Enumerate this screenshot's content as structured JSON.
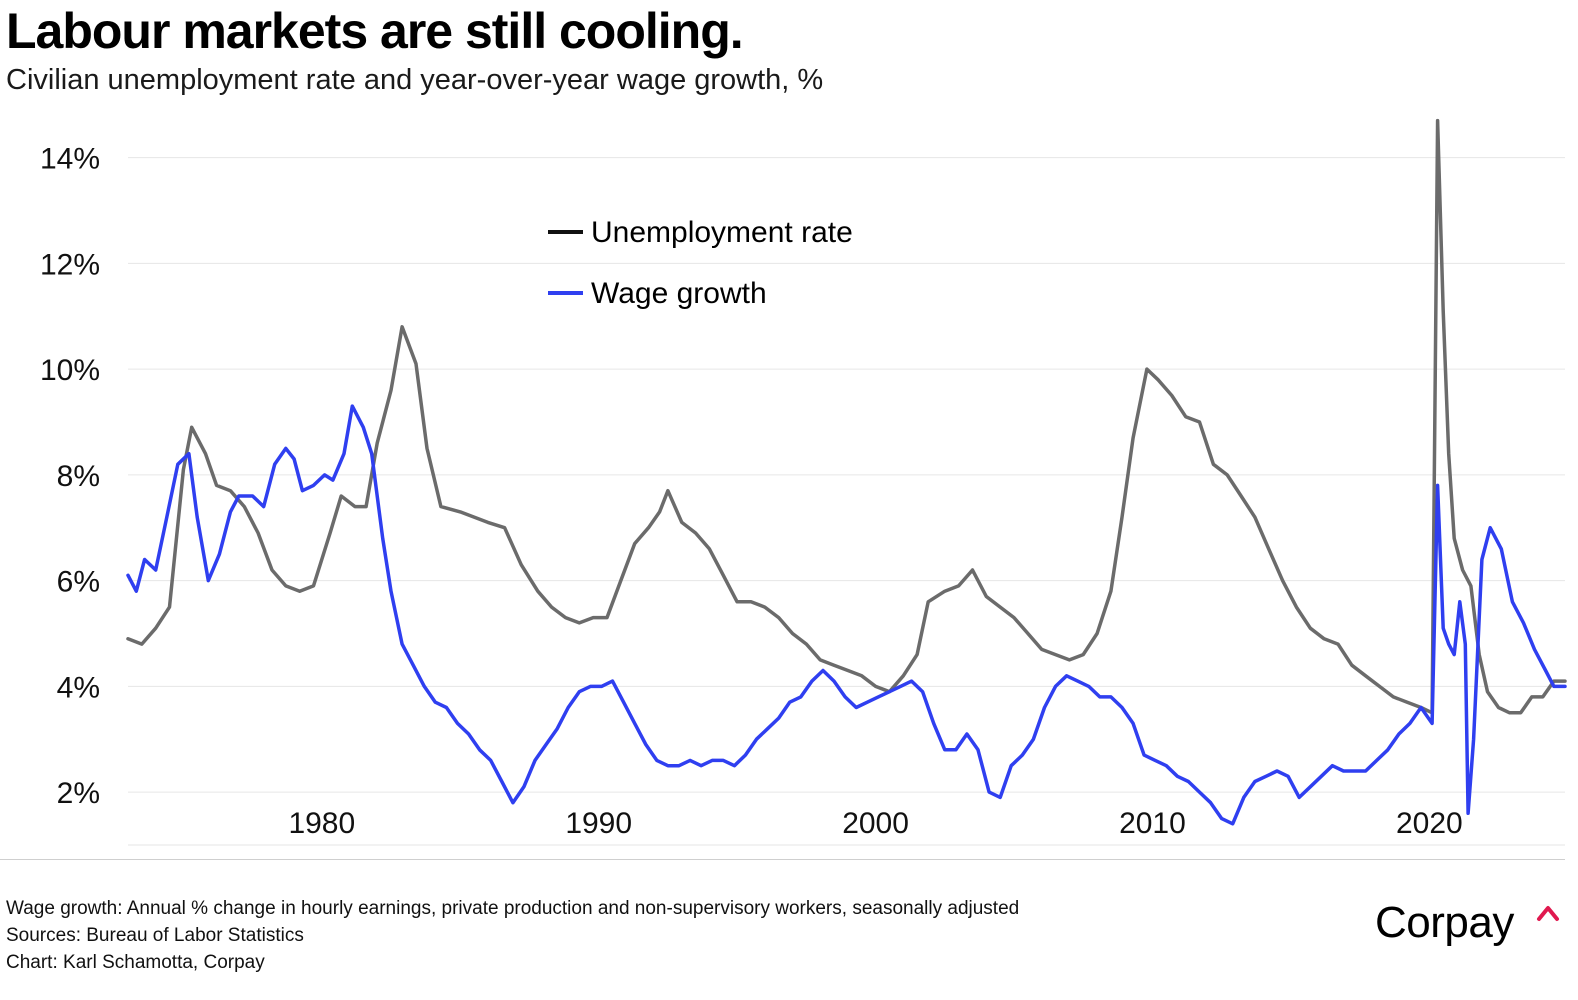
{
  "header": {
    "title": "Labour markets are still cooling.",
    "subtitle": "Civilian unemployment rate and year-over-year wage growth, %"
  },
  "footer": {
    "note": "Wage growth: Annual % change in hourly earnings, private production and non-supervisory workers, seasonally adjusted",
    "sources": "Sources: Bureau of Labor Statistics",
    "credit": "Chart: Karl Schamotta, Corpay"
  },
  "brand": {
    "logo_text": "Corpay",
    "accent_color": "#e0194f"
  },
  "chart_data": {
    "type": "line",
    "title": "Labour markets are still cooling.",
    "subtitle": "Civilian unemployment rate and year-over-year wage growth, %",
    "xlabel": "",
    "ylabel": "",
    "xlim": [
      1973.0,
      2024.9
    ],
    "ylim": [
      1.0,
      14.9
    ],
    "x_ticks": [
      1980,
      1990,
      2000,
      2010,
      2020
    ],
    "x_tick_labels": [
      "1980",
      "1990",
      "2000",
      "2010",
      "2020"
    ],
    "y_ticks": [
      2,
      4,
      6,
      8,
      10,
      12,
      14
    ],
    "y_tick_labels": [
      "2%",
      "4%",
      "6%",
      "8%",
      "10%",
      "12%",
      "14%"
    ],
    "grid": "horizontal",
    "legend": "top-center",
    "series": [
      {
        "name": "Unemployment rate",
        "color": "#6b6b6b",
        "points": [
          [
            1973.0,
            4.9
          ],
          [
            1973.5,
            4.8
          ],
          [
            1974.0,
            5.1
          ],
          [
            1974.5,
            5.5
          ],
          [
            1975.0,
            8.1
          ],
          [
            1975.3,
            8.9
          ],
          [
            1975.8,
            8.4
          ],
          [
            1976.2,
            7.8
          ],
          [
            1976.7,
            7.7
          ],
          [
            1977.2,
            7.4
          ],
          [
            1977.7,
            6.9
          ],
          [
            1978.2,
            6.2
          ],
          [
            1978.7,
            5.9
          ],
          [
            1979.2,
            5.8
          ],
          [
            1979.7,
            5.9
          ],
          [
            1980.3,
            6.9
          ],
          [
            1980.7,
            7.6
          ],
          [
            1981.2,
            7.4
          ],
          [
            1981.6,
            7.4
          ],
          [
            1982.0,
            8.6
          ],
          [
            1982.5,
            9.6
          ],
          [
            1982.9,
            10.8
          ],
          [
            1983.4,
            10.1
          ],
          [
            1983.8,
            8.5
          ],
          [
            1984.3,
            7.4
          ],
          [
            1985.0,
            7.3
          ],
          [
            1986.0,
            7.1
          ],
          [
            1986.6,
            7.0
          ],
          [
            1987.2,
            6.3
          ],
          [
            1987.8,
            5.8
          ],
          [
            1988.3,
            5.5
          ],
          [
            1988.8,
            5.3
          ],
          [
            1989.3,
            5.2
          ],
          [
            1989.8,
            5.3
          ],
          [
            1990.3,
            5.3
          ],
          [
            1990.8,
            6.0
          ],
          [
            1991.3,
            6.7
          ],
          [
            1991.8,
            7.0
          ],
          [
            1992.2,
            7.3
          ],
          [
            1992.5,
            7.7
          ],
          [
            1993.0,
            7.1
          ],
          [
            1993.5,
            6.9
          ],
          [
            1994.0,
            6.6
          ],
          [
            1994.5,
            6.1
          ],
          [
            1995.0,
            5.6
          ],
          [
            1995.5,
            5.6
          ],
          [
            1996.0,
            5.5
          ],
          [
            1996.5,
            5.3
          ],
          [
            1997.0,
            5.0
          ],
          [
            1997.5,
            4.8
          ],
          [
            1998.0,
            4.5
          ],
          [
            1998.5,
            4.4
          ],
          [
            1999.0,
            4.3
          ],
          [
            1999.5,
            4.2
          ],
          [
            2000.0,
            4.0
          ],
          [
            2000.5,
            3.9
          ],
          [
            2001.0,
            4.2
          ],
          [
            2001.5,
            4.6
          ],
          [
            2001.9,
            5.6
          ],
          [
            2002.5,
            5.8
          ],
          [
            2003.0,
            5.9
          ],
          [
            2003.5,
            6.2
          ],
          [
            2004.0,
            5.7
          ],
          [
            2004.5,
            5.5
          ],
          [
            2005.0,
            5.3
          ],
          [
            2005.5,
            5.0
          ],
          [
            2006.0,
            4.7
          ],
          [
            2006.5,
            4.6
          ],
          [
            2007.0,
            4.5
          ],
          [
            2007.5,
            4.6
          ],
          [
            2008.0,
            5.0
          ],
          [
            2008.5,
            5.8
          ],
          [
            2008.9,
            7.2
          ],
          [
            2009.3,
            8.7
          ],
          [
            2009.8,
            10.0
          ],
          [
            2010.2,
            9.8
          ],
          [
            2010.7,
            9.5
          ],
          [
            2011.2,
            9.1
          ],
          [
            2011.7,
            9.0
          ],
          [
            2012.2,
            8.2
          ],
          [
            2012.7,
            8.0
          ],
          [
            2013.2,
            7.6
          ],
          [
            2013.7,
            7.2
          ],
          [
            2014.2,
            6.6
          ],
          [
            2014.7,
            6.0
          ],
          [
            2015.2,
            5.5
          ],
          [
            2015.7,
            5.1
          ],
          [
            2016.2,
            4.9
          ],
          [
            2016.7,
            4.8
          ],
          [
            2017.2,
            4.4
          ],
          [
            2017.7,
            4.2
          ],
          [
            2018.2,
            4.0
          ],
          [
            2018.7,
            3.8
          ],
          [
            2019.2,
            3.7
          ],
          [
            2019.7,
            3.6
          ],
          [
            2020.1,
            3.5
          ],
          [
            2020.3,
            14.7
          ],
          [
            2020.5,
            11.1
          ],
          [
            2020.7,
            8.4
          ],
          [
            2020.9,
            6.8
          ],
          [
            2021.2,
            6.2
          ],
          [
            2021.5,
            5.9
          ],
          [
            2021.8,
            4.6
          ],
          [
            2022.1,
            3.9
          ],
          [
            2022.5,
            3.6
          ],
          [
            2022.9,
            3.5
          ],
          [
            2023.3,
            3.5
          ],
          [
            2023.7,
            3.8
          ],
          [
            2024.1,
            3.8
          ],
          [
            2024.5,
            4.1
          ],
          [
            2024.9,
            4.1
          ]
        ]
      },
      {
        "name": "Wage growth",
        "color": "#2f3ff0",
        "points": [
          [
            1973.0,
            6.1
          ],
          [
            1973.3,
            5.8
          ],
          [
            1973.6,
            6.4
          ],
          [
            1974.0,
            6.2
          ],
          [
            1974.4,
            7.2
          ],
          [
            1974.8,
            8.2
          ],
          [
            1975.2,
            8.4
          ],
          [
            1975.5,
            7.2
          ],
          [
            1975.9,
            6.0
          ],
          [
            1976.3,
            6.5
          ],
          [
            1976.7,
            7.3
          ],
          [
            1977.0,
            7.6
          ],
          [
            1977.5,
            7.6
          ],
          [
            1977.9,
            7.4
          ],
          [
            1978.3,
            8.2
          ],
          [
            1978.7,
            8.5
          ],
          [
            1979.0,
            8.3
          ],
          [
            1979.3,
            7.7
          ],
          [
            1979.7,
            7.8
          ],
          [
            1980.1,
            8.0
          ],
          [
            1980.4,
            7.9
          ],
          [
            1980.8,
            8.4
          ],
          [
            1981.1,
            9.3
          ],
          [
            1981.5,
            8.9
          ],
          [
            1981.8,
            8.4
          ],
          [
            1982.2,
            6.8
          ],
          [
            1982.5,
            5.8
          ],
          [
            1982.9,
            4.8
          ],
          [
            1983.3,
            4.4
          ],
          [
            1983.7,
            4.0
          ],
          [
            1984.1,
            3.7
          ],
          [
            1984.5,
            3.6
          ],
          [
            1984.9,
            3.3
          ],
          [
            1985.3,
            3.1
          ],
          [
            1985.7,
            2.8
          ],
          [
            1986.1,
            2.6
          ],
          [
            1986.5,
            2.2
          ],
          [
            1986.9,
            1.8
          ],
          [
            1987.3,
            2.1
          ],
          [
            1987.7,
            2.6
          ],
          [
            1988.1,
            2.9
          ],
          [
            1988.5,
            3.2
          ],
          [
            1988.9,
            3.6
          ],
          [
            1989.3,
            3.9
          ],
          [
            1989.7,
            4.0
          ],
          [
            1990.1,
            4.0
          ],
          [
            1990.5,
            4.1
          ],
          [
            1990.9,
            3.7
          ],
          [
            1991.3,
            3.3
          ],
          [
            1991.7,
            2.9
          ],
          [
            1992.1,
            2.6
          ],
          [
            1992.5,
            2.5
          ],
          [
            1992.9,
            2.5
          ],
          [
            1993.3,
            2.6
          ],
          [
            1993.7,
            2.5
          ],
          [
            1994.1,
            2.6
          ],
          [
            1994.5,
            2.6
          ],
          [
            1994.9,
            2.5
          ],
          [
            1995.3,
            2.7
          ],
          [
            1995.7,
            3.0
          ],
          [
            1996.1,
            3.2
          ],
          [
            1996.5,
            3.4
          ],
          [
            1996.9,
            3.7
          ],
          [
            1997.3,
            3.8
          ],
          [
            1997.7,
            4.1
          ],
          [
            1998.1,
            4.3
          ],
          [
            1998.5,
            4.1
          ],
          [
            1998.9,
            3.8
          ],
          [
            1999.3,
            3.6
          ],
          [
            1999.7,
            3.7
          ],
          [
            2000.1,
            3.8
          ],
          [
            2000.5,
            3.9
          ],
          [
            2000.9,
            4.0
          ],
          [
            2001.3,
            4.1
          ],
          [
            2001.7,
            3.9
          ],
          [
            2002.1,
            3.3
          ],
          [
            2002.5,
            2.8
          ],
          [
            2002.9,
            2.8
          ],
          [
            2003.3,
            3.1
          ],
          [
            2003.7,
            2.8
          ],
          [
            2004.1,
            2.0
          ],
          [
            2004.5,
            1.9
          ],
          [
            2004.9,
            2.5
          ],
          [
            2005.3,
            2.7
          ],
          [
            2005.7,
            3.0
          ],
          [
            2006.1,
            3.6
          ],
          [
            2006.5,
            4.0
          ],
          [
            2006.9,
            4.2
          ],
          [
            2007.3,
            4.1
          ],
          [
            2007.7,
            4.0
          ],
          [
            2008.1,
            3.8
          ],
          [
            2008.5,
            3.8
          ],
          [
            2008.9,
            3.6
          ],
          [
            2009.3,
            3.3
          ],
          [
            2009.7,
            2.7
          ],
          [
            2010.1,
            2.6
          ],
          [
            2010.5,
            2.5
          ],
          [
            2010.9,
            2.3
          ],
          [
            2011.3,
            2.2
          ],
          [
            2011.7,
            2.0
          ],
          [
            2012.1,
            1.8
          ],
          [
            2012.5,
            1.5
          ],
          [
            2012.9,
            1.4
          ],
          [
            2013.3,
            1.9
          ],
          [
            2013.7,
            2.2
          ],
          [
            2014.1,
            2.3
          ],
          [
            2014.5,
            2.4
          ],
          [
            2014.9,
            2.3
          ],
          [
            2015.3,
            1.9
          ],
          [
            2015.7,
            2.1
          ],
          [
            2016.1,
            2.3
          ],
          [
            2016.5,
            2.5
          ],
          [
            2016.9,
            2.4
          ],
          [
            2017.3,
            2.4
          ],
          [
            2017.7,
            2.4
          ],
          [
            2018.1,
            2.6
          ],
          [
            2018.5,
            2.8
          ],
          [
            2018.9,
            3.1
          ],
          [
            2019.3,
            3.3
          ],
          [
            2019.7,
            3.6
          ],
          [
            2020.1,
            3.3
          ],
          [
            2020.3,
            7.8
          ],
          [
            2020.5,
            5.1
          ],
          [
            2020.7,
            4.8
          ],
          [
            2020.9,
            4.6
          ],
          [
            2021.1,
            5.6
          ],
          [
            2021.3,
            4.8
          ],
          [
            2021.4,
            1.6
          ],
          [
            2021.6,
            3.0
          ],
          [
            2021.9,
            6.4
          ],
          [
            2022.2,
            7.0
          ],
          [
            2022.6,
            6.6
          ],
          [
            2023.0,
            5.6
          ],
          [
            2023.4,
            5.2
          ],
          [
            2023.8,
            4.7
          ],
          [
            2024.2,
            4.3
          ],
          [
            2024.5,
            4.0
          ],
          [
            2024.9,
            4.0
          ]
        ]
      }
    ]
  }
}
